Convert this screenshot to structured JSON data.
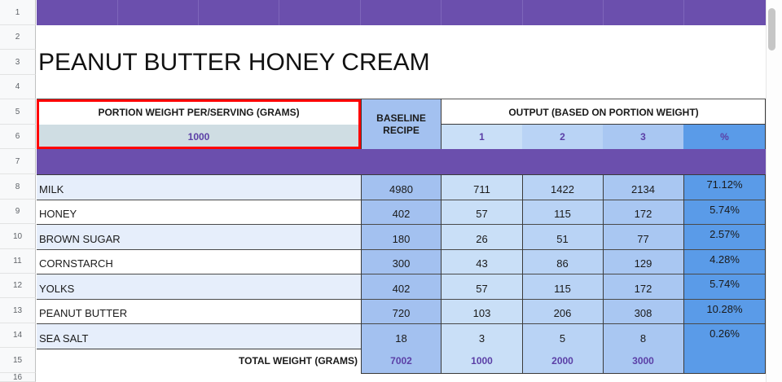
{
  "sheet": {
    "row_numbers": [
      "1",
      "2",
      "3",
      "4",
      "5",
      "6",
      "7",
      "8",
      "9",
      "10",
      "11",
      "12",
      "13",
      "14",
      "15",
      "16"
    ],
    "title": "PEANUT BUTTER HONEY CREAM",
    "portion_label": "PORTION WEIGHT PER/SERVING (GRAMS)",
    "portion_value": "1000",
    "baseline_label": "BASELINE RECIPE",
    "output_label": "OUTPUT (BASED ON PORTION WEIGHT)",
    "output_cols": [
      "1",
      "2",
      "3",
      "%"
    ],
    "ingredients": [
      {
        "name": "MILK",
        "baseline": "4980",
        "o1": "711",
        "o2": "1422",
        "o3": "2134",
        "pct": "71.12%"
      },
      {
        "name": "HONEY",
        "baseline": "402",
        "o1": "57",
        "o2": "115",
        "o3": "172",
        "pct": "5.74%"
      },
      {
        "name": "BROWN SUGAR",
        "baseline": "180",
        "o1": "26",
        "o2": "51",
        "o3": "77",
        "pct": "2.57%"
      },
      {
        "name": "CORNSTARCH",
        "baseline": "300",
        "o1": "43",
        "o2": "86",
        "o3": "129",
        "pct": "4.28%"
      },
      {
        "name": "YOLKS",
        "baseline": "402",
        "o1": "57",
        "o2": "115",
        "o3": "172",
        "pct": "5.74%"
      },
      {
        "name": "PEANUT BUTTER",
        "baseline": "720",
        "o1": "103",
        "o2": "206",
        "o3": "308",
        "pct": "10.28%"
      },
      {
        "name": "SEA SALT",
        "baseline": "18",
        "o1": "3",
        "o2": "5",
        "o3": "8",
        "pct": "0.26%"
      }
    ],
    "total_label": "TOTAL WEIGHT (GRAMS)",
    "totals": {
      "baseline": "7002",
      "o1": "1000",
      "o2": "2000",
      "o3": "3000"
    }
  },
  "colors": {
    "purple_band": "#6b4fad",
    "baseline_fill": "#a3c1f0",
    "output_fill": "#c9dff7",
    "pct_fill": "#5a9be8",
    "portion_fill": "#cfdde3",
    "row_alt": "#e6eefb",
    "highlight": "#ff0000"
  }
}
